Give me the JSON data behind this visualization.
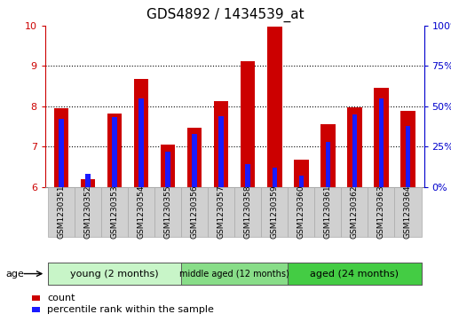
{
  "title": "GDS4892 / 1434539_at",
  "samples": [
    "GSM1230351",
    "GSM1230352",
    "GSM1230353",
    "GSM1230354",
    "GSM1230355",
    "GSM1230356",
    "GSM1230357",
    "GSM1230358",
    "GSM1230359",
    "GSM1230360",
    "GSM1230361",
    "GSM1230362",
    "GSM1230363",
    "GSM1230364"
  ],
  "count_values": [
    7.95,
    6.18,
    7.82,
    8.68,
    7.04,
    7.46,
    8.12,
    9.12,
    9.98,
    6.67,
    7.56,
    7.98,
    8.45,
    7.88
  ],
  "percentile_values": [
    0.42,
    0.08,
    0.43,
    0.55,
    0.22,
    0.33,
    0.44,
    0.14,
    0.12,
    0.07,
    0.28,
    0.45,
    0.55,
    0.38
  ],
  "ylim_min": 6,
  "ylim_max": 10,
  "yticks_left": [
    6,
    7,
    8,
    9,
    10
  ],
  "yticks_right": [
    0,
    25,
    50,
    75,
    100
  ],
  "bar_bottom": 6,
  "bar_width": 0.55,
  "count_color": "#cc0000",
  "percentile_color": "#1a1aff",
  "percentile_bar_width": 0.18,
  "groups": [
    {
      "label": "young (2 months)",
      "start": 0,
      "end": 5,
      "color": "#c8f5c8"
    },
    {
      "label": "middle aged (12 months)",
      "start": 5,
      "end": 9,
      "color": "#88dd88"
    },
    {
      "label": "aged (24 months)",
      "start": 9,
      "end": 14,
      "color": "#44cc44"
    }
  ],
  "age_label": "age",
  "legend_count_label": "count",
  "legend_pct_label": "percentile rank within the sample",
  "title_fontsize": 11,
  "left_tick_color": "#cc0000",
  "right_tick_color": "#0000cc",
  "tick_label_fontsize": 7.5,
  "sample_label_fontsize": 6.5,
  "gray_box_color": "#d0d0d0",
  "gray_box_edge_color": "#aaaaaa"
}
